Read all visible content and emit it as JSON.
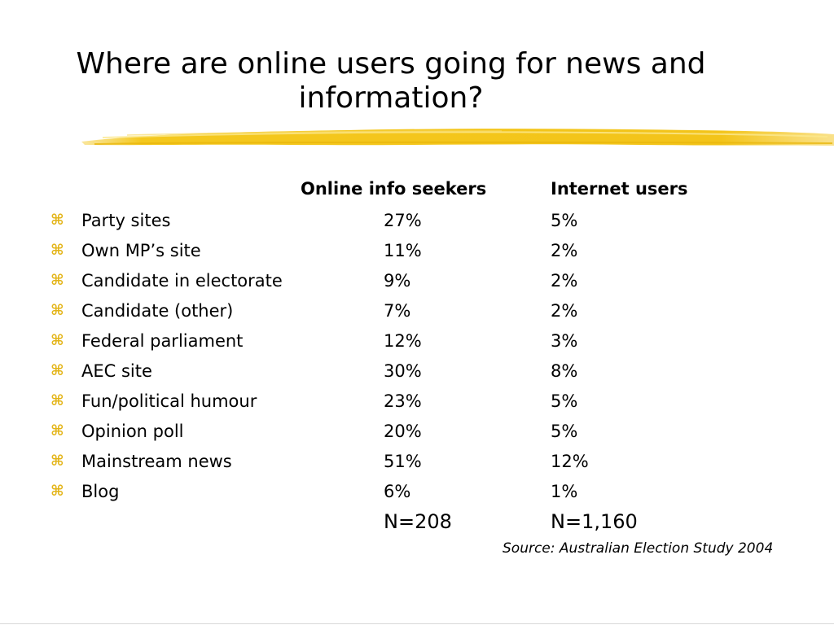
{
  "title": "Where are online users going for news and information?",
  "columns": {
    "seekers": "Online info seekers",
    "users": "Internet users"
  },
  "bullet_glyph": "⌘",
  "accent_color": "#e3b417",
  "rows": [
    {
      "label": "Party sites",
      "seekers": "27%",
      "users": "5%"
    },
    {
      "label": "Own MP’s site",
      "seekers": "11%",
      "users": "2%"
    },
    {
      "label": "Candidate in electorate",
      "seekers": "9%",
      "users": "2%"
    },
    {
      "label": "Candidate (other)",
      "seekers": "7%",
      "users": "2%"
    },
    {
      "label": "Federal parliament",
      "seekers": "12%",
      "users": "3%"
    },
    {
      "label": "AEC site",
      "seekers": "30%",
      "users": "8%"
    },
    {
      "label": "Fun/political humour",
      "seekers": "23%",
      "users": "5%"
    },
    {
      "label": "Opinion poll",
      "seekers": "20%",
      "users": "5%"
    },
    {
      "label": "Mainstream news",
      "seekers": "51%",
      "users": "12%"
    },
    {
      "label": "Blog",
      "seekers": "6%",
      "users": "1%"
    }
  ],
  "totals": {
    "seekers": "N=208",
    "users": "N=1,160"
  },
  "source": "Source: Australian Election Study 2004"
}
